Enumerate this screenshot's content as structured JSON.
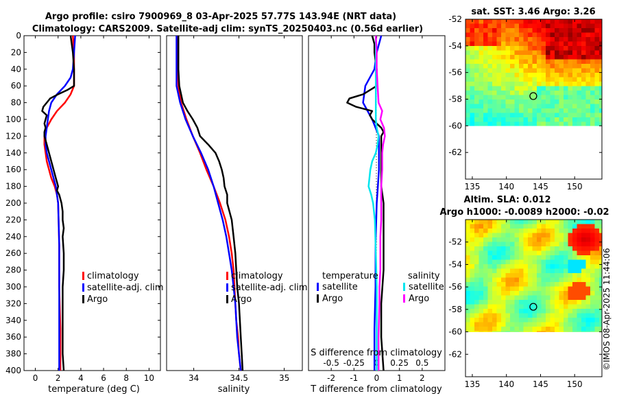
{
  "header": {
    "title_line1": "Argo profile: csiro 7900969_8 03-Apr-2025 57.77S 143.94E (NRT data)",
    "title_line2": "Climatology: CARS2009. Satellite-adj clim: synTS_20250403.nc (0.56d earlier)",
    "stamp": "©IMOS 08-Apr-2025 11:44:06"
  },
  "colors": {
    "climatology": "#ff0000",
    "satellite": "#0000ff",
    "argo": "#000000",
    "sal_sat": "#00e5ee",
    "sal_argo": "#ff00ff",
    "map_missing": "#ffffff"
  },
  "chart_data": [
    {
      "type": "line",
      "id": "temperature",
      "xlabel": "temperature (deg C)",
      "ylabel": "",
      "xlim": [
        -1,
        11
      ],
      "ylim": [
        400,
        0
      ],
      "xticks": [
        0,
        2,
        4,
        6,
        8,
        10
      ],
      "yticks": [
        0,
        20,
        40,
        60,
        80,
        100,
        120,
        140,
        160,
        180,
        200,
        220,
        240,
        260,
        280,
        300,
        320,
        340,
        360,
        380,
        400
      ],
      "legend": [
        "climatology",
        "satellite-adj. clim",
        "Argo"
      ],
      "series": [
        {
          "name": "climatology",
          "color": "red",
          "depth": [
            0,
            20,
            40,
            60,
            70,
            80,
            90,
            100,
            110,
            120,
            130,
            140,
            150,
            160,
            170,
            180,
            190,
            200,
            250,
            300,
            350,
            400
          ],
          "values": [
            3.3,
            3.4,
            3.4,
            3.4,
            3.1,
            2.6,
            1.9,
            1.4,
            1.0,
            0.8,
            0.8,
            0.9,
            1.0,
            1.2,
            1.4,
            1.7,
            1.9,
            2.0,
            2.1,
            2.1,
            2.2,
            2.2
          ]
        },
        {
          "name": "satellite-adj. clim",
          "color": "blue",
          "depth": [
            0,
            20,
            40,
            50,
            60,
            70,
            80,
            90,
            100,
            110,
            120,
            130,
            140,
            150,
            160,
            170,
            180,
            190,
            200,
            250,
            300,
            350,
            400
          ],
          "values": [
            3.5,
            3.4,
            3.3,
            3.1,
            2.6,
            1.9,
            1.4,
            1.2,
            1.1,
            1.0,
            0.9,
            0.9,
            1.0,
            1.2,
            1.4,
            1.6,
            1.8,
            1.9,
            2.0,
            2.1,
            2.1,
            2.1,
            2.1
          ]
        },
        {
          "name": "Argo",
          "color": "black",
          "depth": [
            0,
            20,
            40,
            60,
            65,
            70,
            75,
            80,
            85,
            90,
            95,
            100,
            105,
            110,
            115,
            120,
            125,
            130,
            140,
            150,
            160,
            170,
            180,
            185,
            190,
            200,
            210,
            220,
            230,
            240,
            260,
            280,
            300,
            320,
            340,
            360,
            380,
            400
          ],
          "values": [
            3.1,
            3.3,
            3.4,
            3.4,
            2.8,
            2.0,
            1.3,
            1.0,
            0.7,
            0.6,
            1.0,
            0.9,
            0.8,
            0.9,
            0.8,
            0.8,
            0.9,
            1.0,
            1.2,
            1.4,
            1.6,
            1.8,
            2.0,
            1.9,
            2.1,
            2.3,
            2.4,
            2.4,
            2.5,
            2.4,
            2.5,
            2.5,
            2.4,
            2.4,
            2.4,
            2.4,
            2.4,
            2.5
          ]
        }
      ]
    },
    {
      "type": "line",
      "id": "salinity",
      "xlabel": "salinity",
      "xlim": [
        33.7,
        35.2
      ],
      "ylim": [
        400,
        0
      ],
      "xticks": [
        34,
        34.5,
        35
      ],
      "legend": [
        "climatology",
        "satellite-adj. clim",
        "Argo"
      ],
      "series": [
        {
          "name": "climatology",
          "color": "red",
          "depth": [
            0,
            20,
            40,
            60,
            80,
            100,
            120,
            140,
            160,
            180,
            200,
            220,
            240,
            260,
            280,
            300,
            320,
            340,
            360,
            380,
            400
          ],
          "values": [
            33.82,
            33.82,
            33.82,
            33.83,
            33.86,
            33.92,
            33.99,
            34.07,
            34.14,
            34.22,
            34.29,
            34.35,
            34.39,
            34.42,
            34.44,
            34.45,
            34.46,
            34.47,
            34.49,
            34.5,
            34.52
          ]
        },
        {
          "name": "satellite-adj. clim",
          "color": "blue",
          "depth": [
            0,
            20,
            40,
            60,
            80,
            100,
            120,
            140,
            160,
            180,
            200,
            220,
            240,
            260,
            280,
            300,
            320,
            340,
            360,
            380,
            400
          ],
          "values": [
            33.81,
            33.81,
            33.81,
            33.81,
            33.85,
            33.91,
            33.99,
            34.08,
            34.16,
            34.22,
            34.27,
            34.32,
            34.36,
            34.39,
            34.42,
            34.44,
            34.46,
            34.47,
            34.48,
            34.5,
            34.52
          ]
        },
        {
          "name": "Argo",
          "color": "black",
          "depth": [
            0,
            20,
            40,
            60,
            80,
            90,
            100,
            110,
            120,
            130,
            140,
            150,
            160,
            170,
            180,
            190,
            200,
            220,
            240,
            260,
            280,
            300,
            320,
            340,
            360,
            380,
            400
          ],
          "values": [
            33.83,
            33.83,
            33.83,
            33.84,
            33.88,
            33.93,
            33.99,
            34.04,
            34.07,
            34.16,
            34.24,
            34.28,
            34.31,
            34.33,
            34.34,
            34.37,
            34.37,
            34.42,
            34.44,
            34.46,
            34.47,
            34.48,
            34.5,
            34.51,
            34.52,
            34.53,
            34.54
          ]
        }
      ]
    },
    {
      "type": "line",
      "id": "difference",
      "xlabel": "T difference from climatology",
      "xlabel_top": "S difference from climatology",
      "xlim": [
        -3,
        3
      ],
      "ylim": [
        400,
        0
      ],
      "xticks": [
        -2,
        -1,
        0,
        1,
        2
      ],
      "s_ticks": [
        "-0.5",
        "-0.25",
        "0",
        "0.25",
        "0.5"
      ],
      "s_xlim": [
        -0.75,
        0.75
      ],
      "legend_temperature": {
        "heading": "temperature",
        "items": [
          "satellite",
          "Argo"
        ]
      },
      "legend_salinity": {
        "heading": "salinity",
        "items": [
          "satellite",
          "Argo"
        ]
      },
      "series": [
        {
          "name": "temperature satellite",
          "color": "blue",
          "depth": [
            0,
            20,
            40,
            60,
            80,
            100,
            120,
            140,
            160,
            180,
            200,
            250,
            300,
            350,
            400
          ],
          "values": [
            0.2,
            0.0,
            -0.1,
            -0.5,
            -0.6,
            -0.2,
            0.1,
            0.1,
            0.1,
            0.05,
            0.0,
            -0.05,
            -0.05,
            -0.1,
            -0.1
          ]
        },
        {
          "name": "temperature Argo",
          "color": "black",
          "depth": [
            0,
            10,
            20,
            30,
            40,
            50,
            60,
            70,
            75,
            80,
            85,
            90,
            95,
            100,
            105,
            110,
            115,
            120,
            130,
            140,
            160,
            180,
            200,
            240,
            280,
            320,
            360,
            400
          ],
          "values": [
            -0.2,
            -0.1,
            -0.1,
            -0.05,
            0.0,
            0.0,
            0.0,
            -0.6,
            -1.2,
            -1.3,
            -0.9,
            -0.2,
            -0.3,
            -0.2,
            0.0,
            0.2,
            0.3,
            0.2,
            0.2,
            0.2,
            0.2,
            0.2,
            0.3,
            0.3,
            0.3,
            0.2,
            0.2,
            0.3
          ]
        },
        {
          "name": "salinity satellite",
          "color": "cyan",
          "depth": [
            0,
            100,
            110,
            120,
            130,
            140,
            150,
            160,
            170,
            180,
            190,
            200,
            220,
            260,
            300,
            340,
            400
          ],
          "values": [
            -0.01,
            -0.01,
            0.0,
            0.02,
            0.01,
            -0.01,
            -0.05,
            -0.07,
            -0.08,
            -0.09,
            -0.06,
            -0.04,
            -0.02,
            -0.01,
            0.0,
            0.0,
            0.0
          ]
        },
        {
          "name": "salinity Argo",
          "color": "magenta",
          "depth": [
            0,
            20,
            40,
            60,
            80,
            90,
            100,
            110,
            120,
            130,
            140,
            160,
            180,
            200,
            220,
            240,
            260,
            280,
            300,
            320,
            360,
            400
          ],
          "values": [
            -0.01,
            0.0,
            0.0,
            0.01,
            0.02,
            0.06,
            0.04,
            0.08,
            0.09,
            0.07,
            0.06,
            0.06,
            0.05,
            0.05,
            0.05,
            0.04,
            0.04,
            0.04,
            0.03,
            0.03,
            0.02,
            0.02
          ]
        }
      ]
    },
    {
      "type": "heatmap",
      "id": "sst_map",
      "title": "sat. SST: 3.46 Argo: 3.26",
      "xticks": [
        135,
        140,
        145,
        150
      ],
      "yticks": [
        -52,
        -54,
        -56,
        -58,
        -60,
        -62
      ],
      "xlim": [
        134,
        154
      ],
      "ylim": [
        -64,
        -52
      ],
      "argo_position": [
        143.94,
        -57.77
      ],
      "data_lat_range": [
        -60,
        -52
      ],
      "colormap": "jet",
      "field": "warm (red) toward north-east, yellow/green band mid, green to south"
    },
    {
      "type": "heatmap",
      "id": "sla_map",
      "title_line1": "Altim. SLA: 0.012",
      "title_line2": "Argo h1000: -0.0089 h2000: -0.02",
      "xticks": [
        135,
        140,
        145,
        150
      ],
      "yticks": [
        -52,
        -54,
        -56,
        -58,
        -60,
        -62
      ],
      "xlim": [
        134,
        154
      ],
      "ylim": [
        -64,
        -50
      ],
      "argo_position": [
        143.94,
        -57.77
      ],
      "data_lat_range": [
        -60,
        -50
      ],
      "colormap": "jet",
      "field": "mostly green/yellow with red-orange eddies on the east side"
    }
  ]
}
